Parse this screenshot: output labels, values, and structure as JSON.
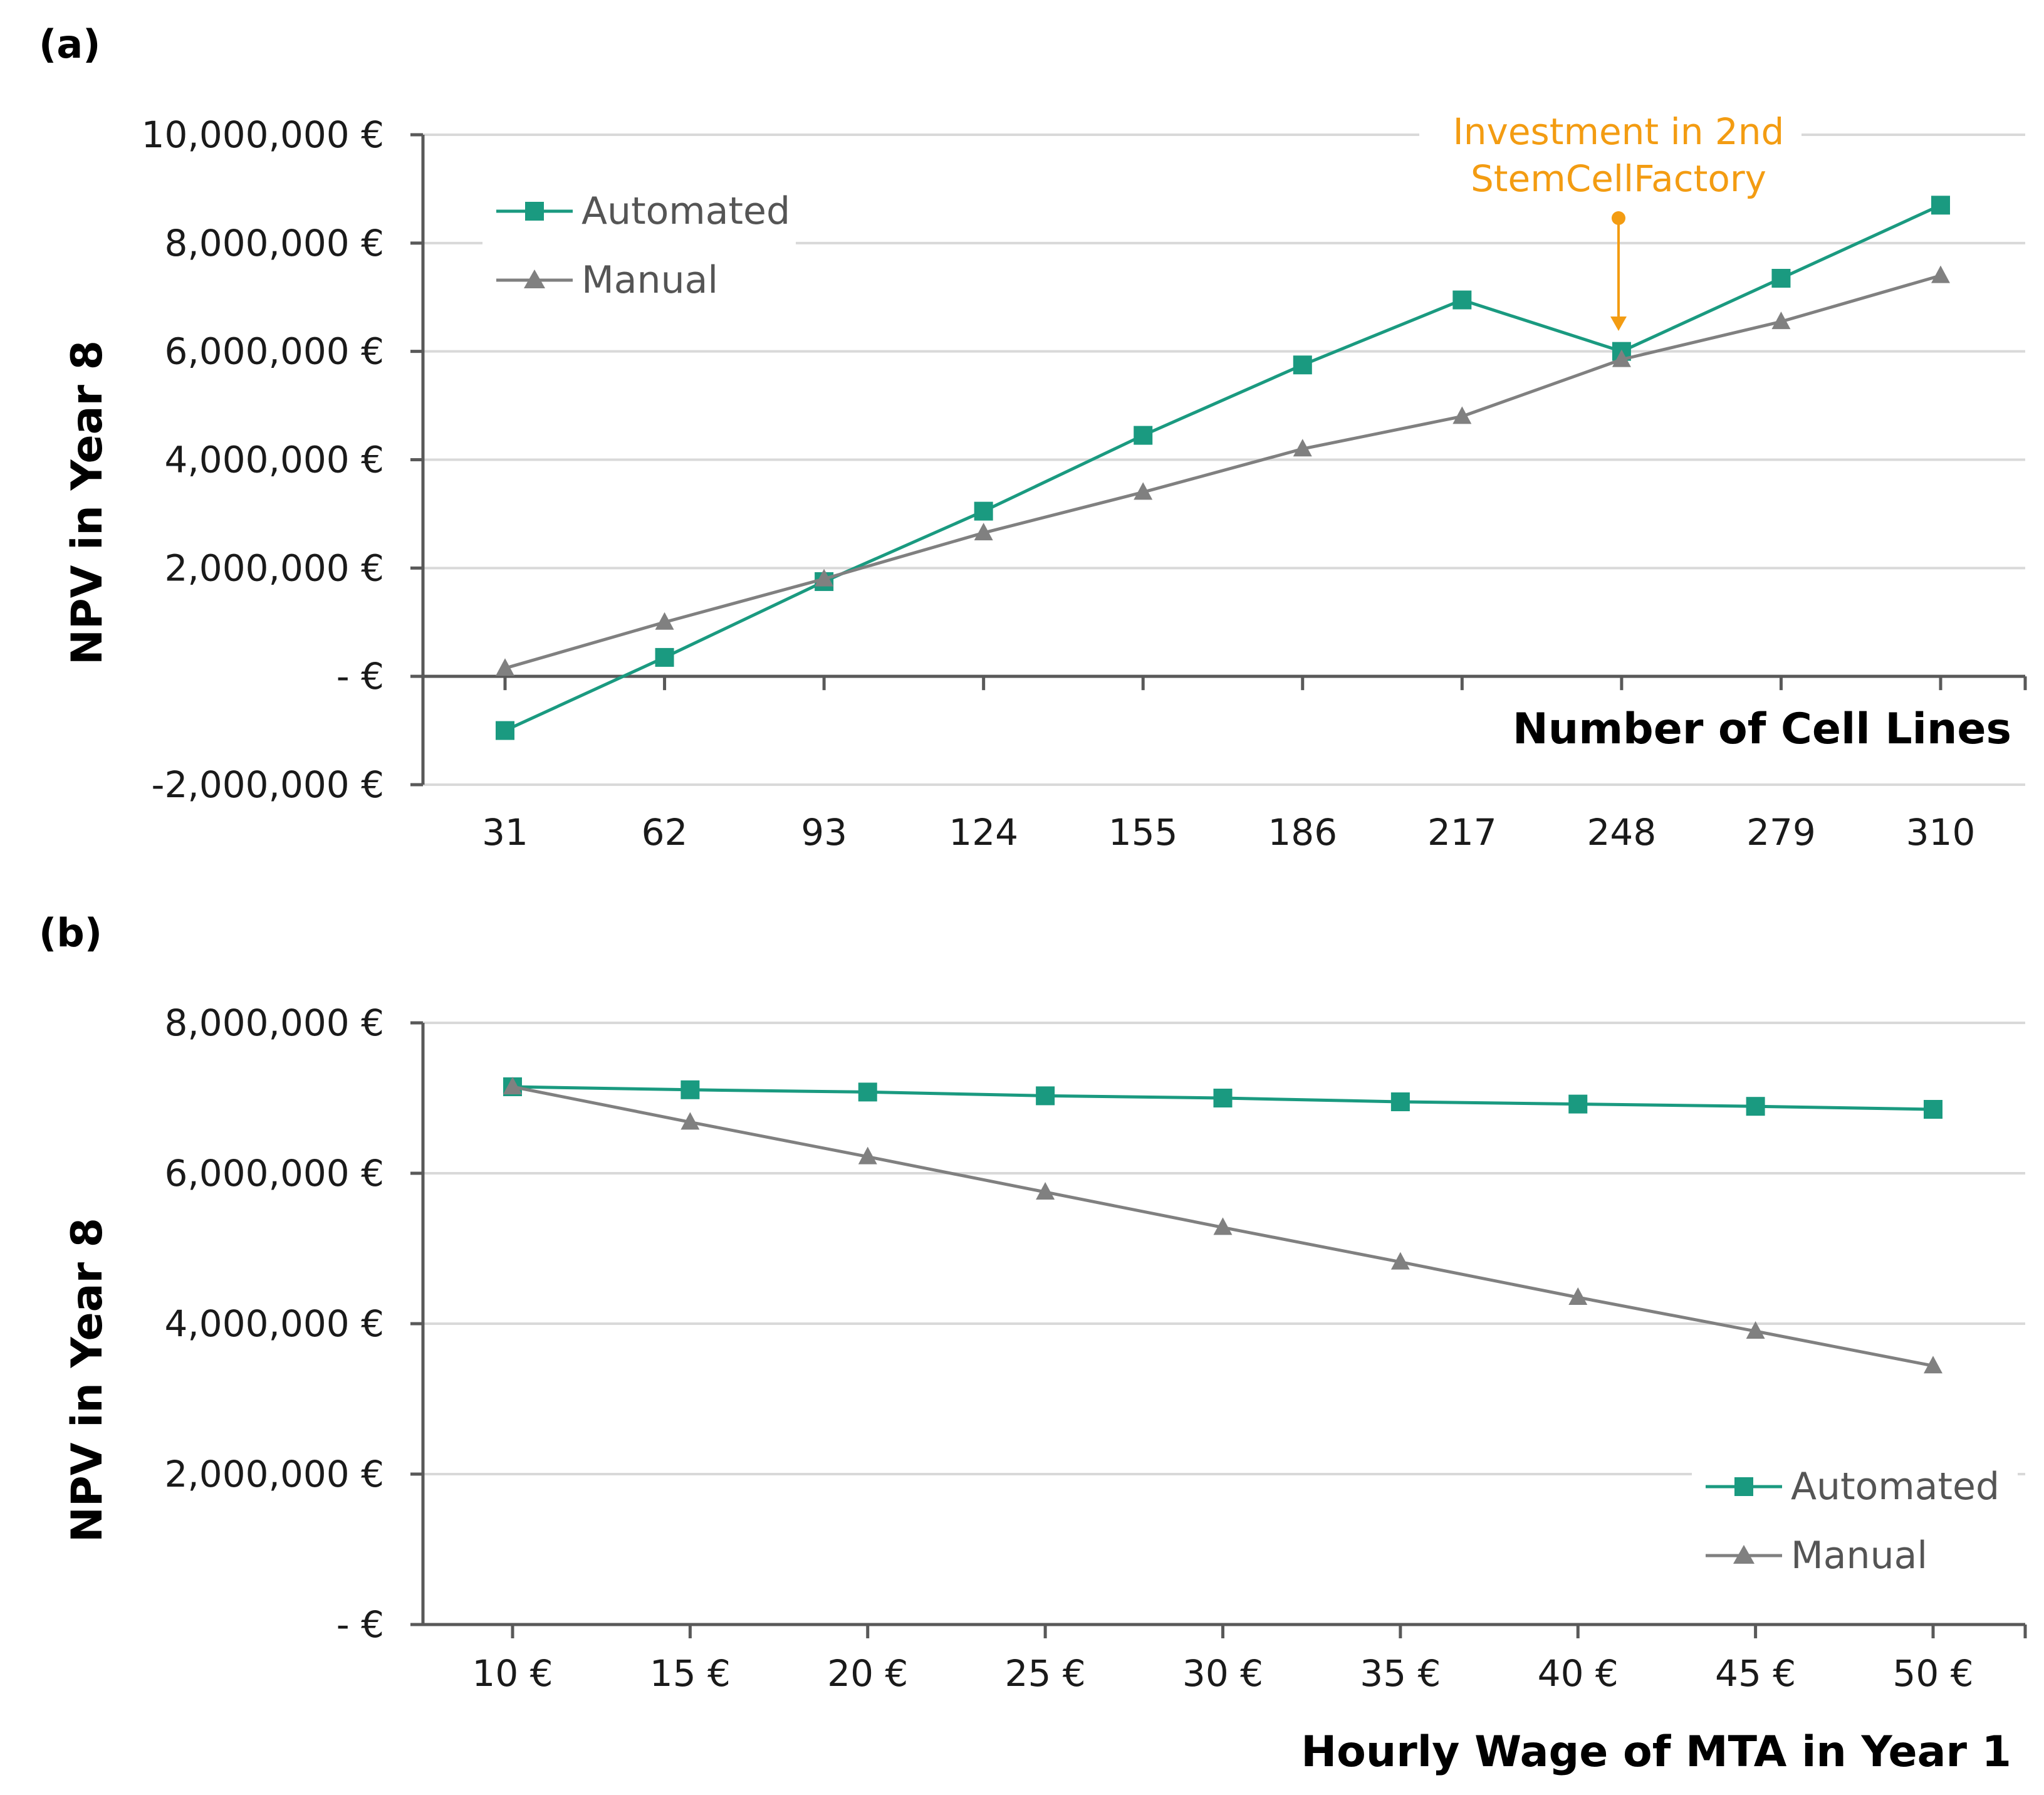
{
  "colors": {
    "automated": "#1a9a80",
    "manual": "#808080",
    "annotation": "#f39c12",
    "axis": "#595959",
    "grid": "#d9d9d9"
  },
  "chart_data": [
    {
      "panel_label": "(a)",
      "type": "line",
      "title": "",
      "xlabel": "Number of Cell Lines",
      "ylabel": "NPV in Year 8",
      "categories": [
        "31",
        "62",
        "93",
        "124",
        "155",
        "186",
        "217",
        "248",
        "279",
        "310"
      ],
      "ylim": [
        -2000000,
        10000000
      ],
      "yticks": [
        -2000000,
        0,
        2000000,
        4000000,
        6000000,
        8000000,
        10000000
      ],
      "ytick_labels": [
        "-2,000,000 €",
        "-   €",
        "2,000,000 €",
        "4,000,000 €",
        "6,000,000 €",
        "8,000,000 €",
        "10,000,000 €"
      ],
      "series": [
        {
          "name": "Automated",
          "marker": "square",
          "values": [
            -1000000,
            350000,
            1750000,
            3050000,
            4450000,
            5750000,
            6950000,
            6000000,
            7350000,
            8700000
          ]
        },
        {
          "name": "Manual",
          "marker": "triangle",
          "values": [
            150000,
            1000000,
            1800000,
            2650000,
            3400000,
            4200000,
            4800000,
            5850000,
            6550000,
            7400000
          ]
        }
      ],
      "legend": "top-left",
      "grid": true,
      "annotation": {
        "lines": [
          "Investment in 2nd",
          "StemCellFactory"
        ],
        "category": "248",
        "points_to_series": "Automated"
      }
    },
    {
      "panel_label": "(b)",
      "type": "line",
      "title": "",
      "xlabel": "Hourly Wage of MTA in Year 1",
      "ylabel": "NPV in Year 8",
      "categories": [
        "10 €",
        "15 €",
        "20 €",
        "25 €",
        "30 €",
        "35 €",
        "40 €",
        "45 €",
        "50 €"
      ],
      "ylim": [
        0,
        8000000
      ],
      "yticks": [
        0,
        2000000,
        4000000,
        6000000,
        8000000
      ],
      "ytick_labels": [
        "-   €",
        "2,000,000 €",
        "4,000,000 €",
        "6,000,000 €",
        "8,000,000 €"
      ],
      "series": [
        {
          "name": "Automated",
          "marker": "square",
          "values": [
            7150000,
            7110000,
            7080000,
            7030000,
            7000000,
            6950000,
            6920000,
            6890000,
            6850000
          ]
        },
        {
          "name": "Manual",
          "marker": "triangle",
          "values": [
            7150000,
            6680000,
            6220000,
            5750000,
            5280000,
            4820000,
            4350000,
            3900000,
            3440000
          ]
        }
      ],
      "legend": "bottom-right",
      "grid": true
    }
  ]
}
